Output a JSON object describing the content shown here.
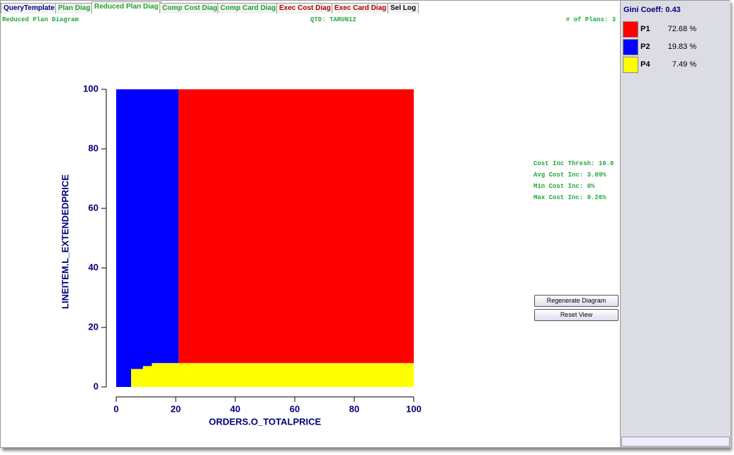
{
  "tabs": [
    "QueryTemplate",
    "Plan Diag",
    "Reduced Plan Diag",
    "Comp Cost Diag",
    "Comp Card Diag",
    "Exec Cost Diag",
    "Exec Card Diag",
    "Sel Log"
  ],
  "header": {
    "left": "Reduced Plan Diagram",
    "center": "QTD: TARUN12",
    "right": "# of Plans: 3"
  },
  "plot": {
    "xlabel": "ORDERS.O_TOTALPRICE",
    "ylabel": "LINEITEM.L_EXTENDEDPRICE",
    "xlim": [
      0,
      100
    ],
    "ylim": [
      0,
      100
    ],
    "xticks": [
      0,
      20,
      40,
      60,
      80,
      100
    ],
    "yticks": [
      0,
      20,
      40,
      60,
      80,
      100
    ],
    "regions": [
      {
        "color": "#0000ff",
        "points": [
          [
            0,
            0
          ],
          [
            5,
            0
          ],
          [
            5,
            6
          ],
          [
            9,
            6
          ],
          [
            9,
            7
          ],
          [
            12,
            7
          ],
          [
            12,
            8
          ],
          [
            21,
            8
          ],
          [
            21,
            100
          ],
          [
            0,
            100
          ]
        ]
      },
      {
        "color": "#ff0000",
        "points": [
          [
            21,
            8
          ],
          [
            100,
            8
          ],
          [
            100,
            100
          ],
          [
            21,
            100
          ]
        ]
      },
      {
        "color": "#ffff00",
        "points": [
          [
            5,
            0
          ],
          [
            100,
            0
          ],
          [
            100,
            8
          ],
          [
            12,
            8
          ],
          [
            12,
            7
          ],
          [
            9,
            7
          ],
          [
            9,
            6
          ],
          [
            5,
            6
          ]
        ]
      }
    ]
  },
  "stats": [
    "Cost Inc Thresh: 10.0",
    "Avg Cost Inc: 3.09%",
    "Min Cost Inc: 0%",
    "Max Cost Inc: 9.26%"
  ],
  "buttons": [
    "Regenerate Diagram",
    "Reset View"
  ],
  "legend": {
    "title": "Gini Coeff: 0.43",
    "items": [
      {
        "name": "P1",
        "color": "#ff0000",
        "value": "72.68 %"
      },
      {
        "name": "P2",
        "color": "#0000ff",
        "value": "19.83 %"
      },
      {
        "name": "P4",
        "color": "#ffff00",
        "value": "7.49 %"
      }
    ]
  }
}
